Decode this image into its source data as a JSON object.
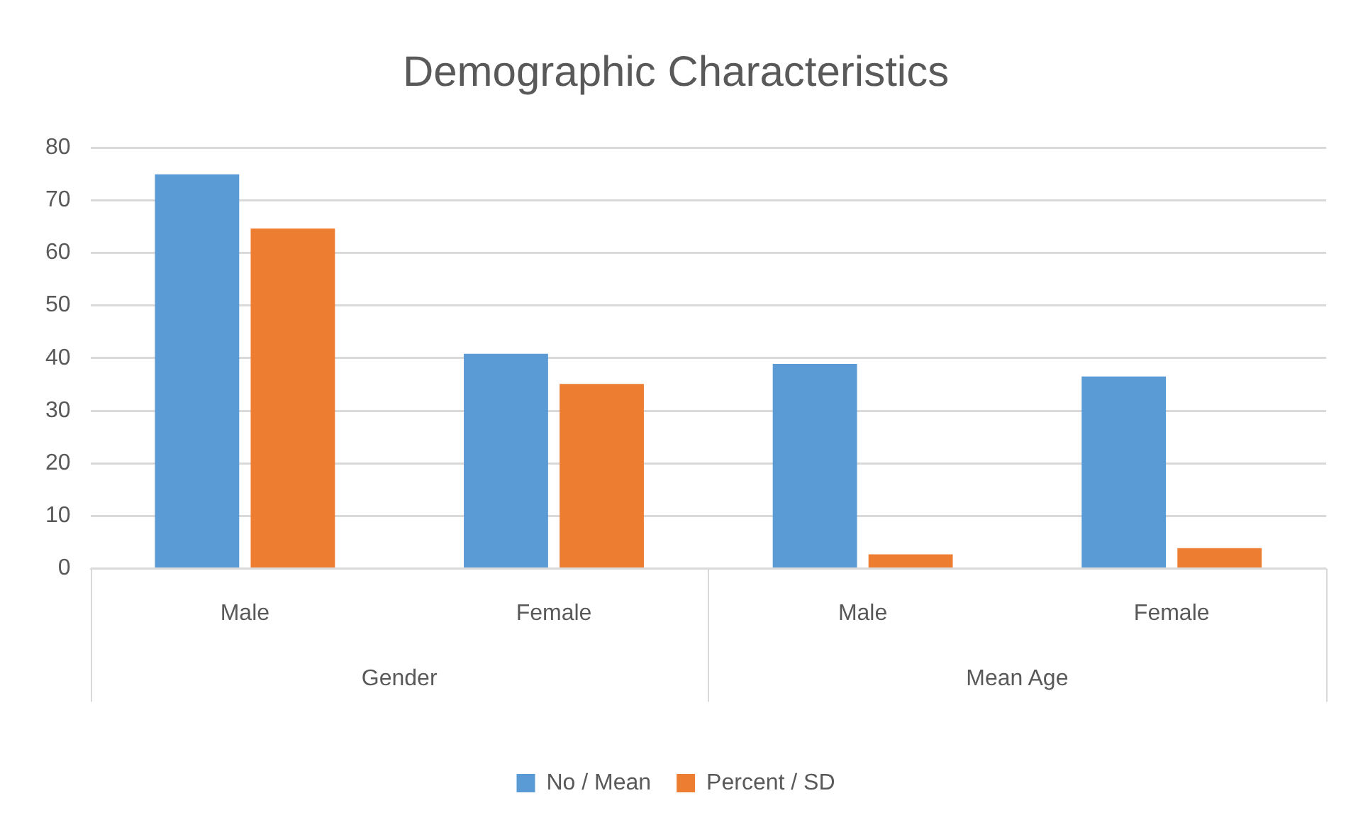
{
  "chart_data": {
    "type": "bar",
    "title": "Demographic Characteristics",
    "categories": [
      "Male",
      "Female",
      "Male",
      "Female"
    ],
    "series": [
      {
        "name": "No / Mean",
        "color": "#5b9bd5",
        "values": [
          74.9,
          40.8,
          38.9,
          36.5
        ]
      },
      {
        "name": "Percent / SD",
        "color": "#ed7d31",
        "values": [
          64.6,
          35.1,
          2.7,
          3.9
        ]
      }
    ],
    "annotations": [
      "Gender",
      "Mean Age"
    ],
    "ylim": [
      0,
      80
    ],
    "yticks": [
      0,
      10,
      20,
      30,
      40,
      50,
      60,
      70,
      80
    ],
    "grid": "y",
    "legend": "bottom"
  }
}
